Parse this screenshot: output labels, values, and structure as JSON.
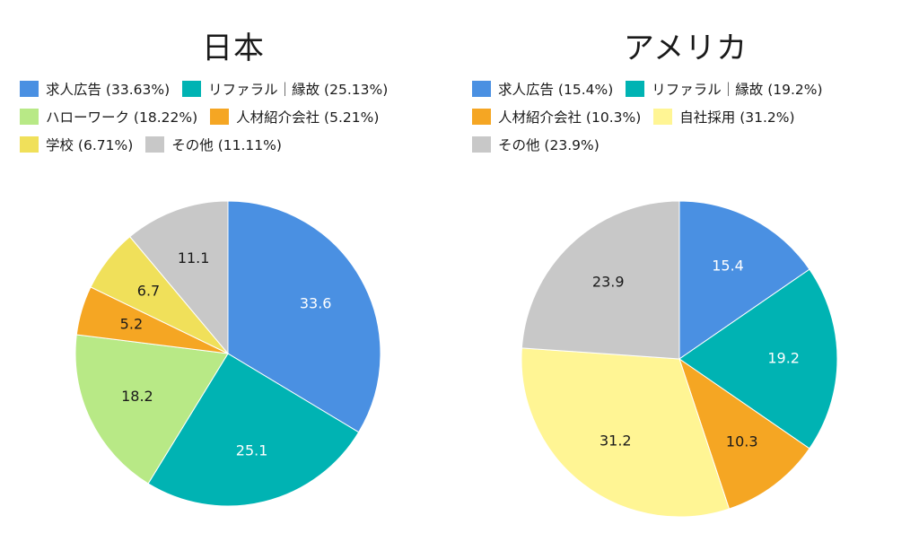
{
  "chart_data": [
    {
      "type": "pie",
      "title": "日本",
      "categories": [
        "求人広告",
        "リファラル｜縁故",
        "ハローワーク",
        "人材紹介会社",
        "学校",
        "その他"
      ],
      "legend_labels": [
        "求人広告 (33.63%)",
        "リファラル｜縁故 (25.13%)",
        "ハローワーク (18.22%)",
        "人材紹介会社 (5.21%)",
        "学校 (6.71%)",
        "その他 (11.11%)"
      ],
      "values": [
        33.63,
        25.13,
        18.22,
        5.21,
        6.71,
        11.11
      ],
      "data_labels": [
        "33.6",
        "25.1",
        "18.2",
        "5.2",
        "6.7",
        "11.1"
      ],
      "colors": [
        "#4a90e2",
        "#00b3b3",
        "#b8e986",
        "#f5a623",
        "#f0e05a",
        "#c8c8c8"
      ],
      "label_colors": [
        "#ffffff",
        "#ffffff",
        "#1a1a1a",
        "#1a1a1a",
        "#1a1a1a",
        "#1a1a1a"
      ],
      "legend_placement": "top"
    },
    {
      "type": "pie",
      "title": "アメリカ",
      "categories": [
        "求人広告",
        "リファラル｜縁故",
        "人材紹介会社",
        "自社採用",
        "その他"
      ],
      "legend_labels": [
        "求人広告 (15.4%)",
        "リファラル｜縁故 (19.2%)",
        "人材紹介会社 (10.3%)",
        "自社採用 (31.2%)",
        "その他 (23.9%)"
      ],
      "values": [
        15.4,
        19.2,
        10.3,
        31.2,
        23.9
      ],
      "data_labels": [
        "15.4",
        "19.2",
        "10.3",
        "31.2",
        "23.9"
      ],
      "colors": [
        "#4a90e2",
        "#00b3b3",
        "#f5a623",
        "#fff594",
        "#c8c8c8"
      ],
      "label_colors": [
        "#ffffff",
        "#ffffff",
        "#1a1a1a",
        "#1a1a1a",
        "#1a1a1a"
      ],
      "legend_placement": "top"
    }
  ]
}
